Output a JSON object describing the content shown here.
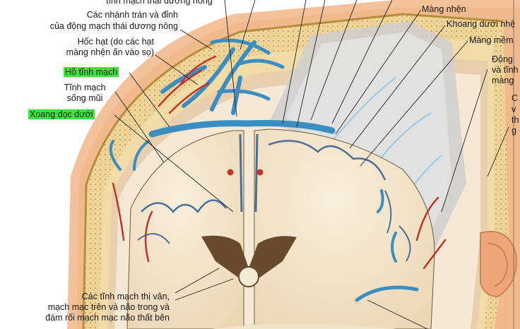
{
  "labels": {
    "top_cut": "tĩnh mạch thái dương nông",
    "frontal_parietal_1": "Các nhánh trán và đỉnh",
    "frontal_parietal_2": "của động mạch thái dương nông",
    "granular_pits_1": "Hốc hạt (do các hạt",
    "granular_pits_2": "màng nhện ấn vào sọ)",
    "venous_lacuna": "Hồ tĩnh mạch",
    "diploic_vein_1": "Tĩnh mạch",
    "diploic_vein_2": "sống mũi",
    "inferior_sagittal_sinus": "Xoang dọc dưới",
    "arachnoid": "Màng nhện",
    "subarachnoid_space": "Khoang dưới nhệ",
    "pia_mater": "Màng mềm",
    "meningeal_vessels_1": "Động",
    "meningeal_vessels_2": "và tĩnh",
    "meningeal_vessels_3": "màng",
    "edge_c": "C",
    "edge_v": "v",
    "edge_th": "th",
    "edge_g": "g",
    "bottom_1": "Các tĩnh mạch thị vân,",
    "bottom_2": "mạch mạc trên và não trong và",
    "bottom_3": "đám rối mạch mạc não thất bên"
  },
  "colors": {
    "highlight": "#39e639",
    "bone": "#efd79a",
    "vein_blue": "#3a8fc0",
    "artery_red": "#c8322c",
    "brain": "#f4e6cf",
    "skin": "#f2b787"
  }
}
